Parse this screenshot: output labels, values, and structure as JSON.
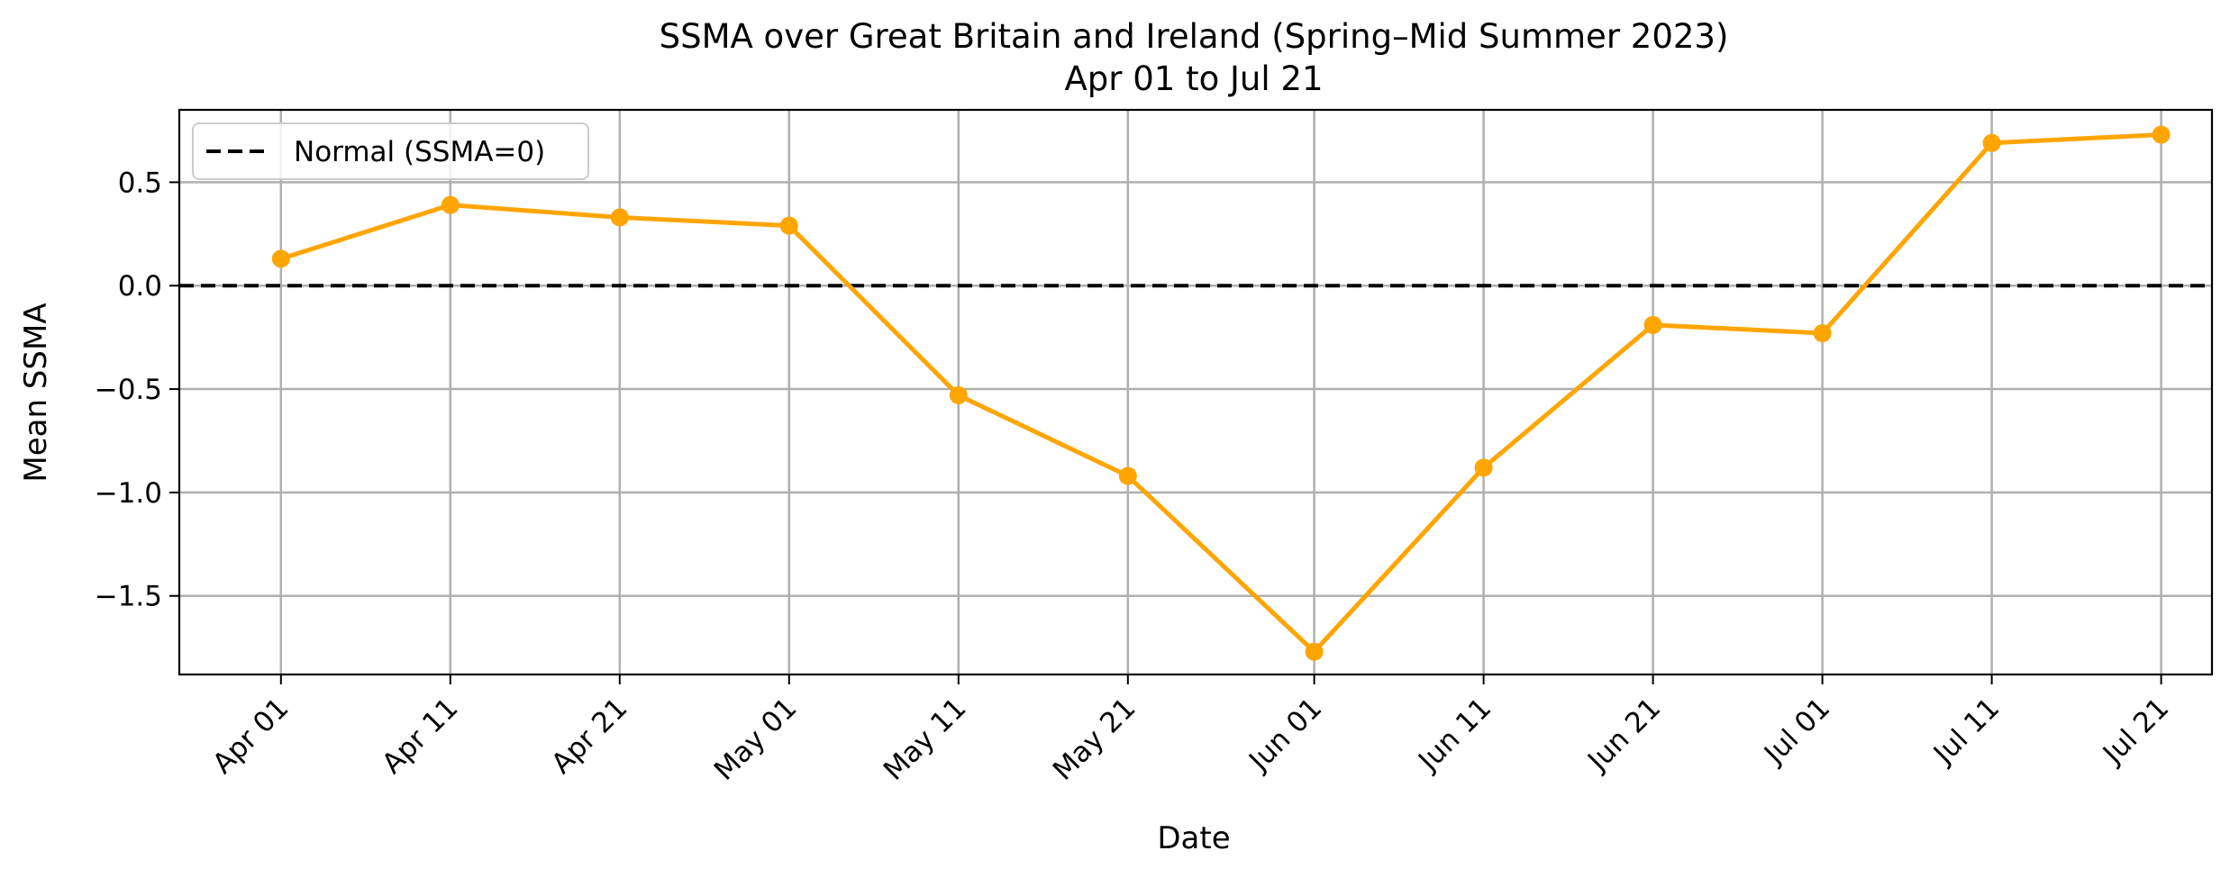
{
  "chart_data": {
    "type": "line",
    "title": "SSMA over Great Britain and Ireland (Spring–Mid Summer 2023)",
    "subtitle": "Apr 01 to Jul 21",
    "xlabel": "Date",
    "ylabel": "Mean SSMA",
    "categories": [
      "Apr 01",
      "Apr 11",
      "Apr 21",
      "May 01",
      "May 11",
      "May 21",
      "Jun 01",
      "Jun 11",
      "Jun 21",
      "Jul 01",
      "Jul 11",
      "Jul 21"
    ],
    "x_dates": [
      "2023-04-01",
      "2023-04-11",
      "2023-04-21",
      "2023-05-01",
      "2023-05-11",
      "2023-05-21",
      "2023-06-01",
      "2023-06-11",
      "2023-06-21",
      "2023-07-01",
      "2023-07-11",
      "2023-07-21"
    ],
    "x_range": [
      "2023-03-26",
      "2023-07-24"
    ],
    "series": [
      {
        "values": [
          0.13,
          0.39,
          0.33,
          0.29,
          -0.53,
          -0.92,
          -1.77,
          -0.88,
          -0.19,
          -0.23,
          0.69,
          0.73
        ],
        "color": "#FFA500",
        "marker": "circle"
      }
    ],
    "reference_line": {
      "label": "Normal (SSMA=0)",
      "y": 0,
      "color": "#000000",
      "style": "dashed"
    },
    "yticks": [
      0.5,
      0.0,
      -0.5,
      -1.0,
      -1.5
    ],
    "ytick_labels": [
      "0.5",
      "0.0",
      "−0.5",
      "−1.0",
      "−1.5"
    ],
    "ylim": [
      -1.88,
      0.85
    ],
    "grid": true,
    "legend_position": "upper-left"
  }
}
